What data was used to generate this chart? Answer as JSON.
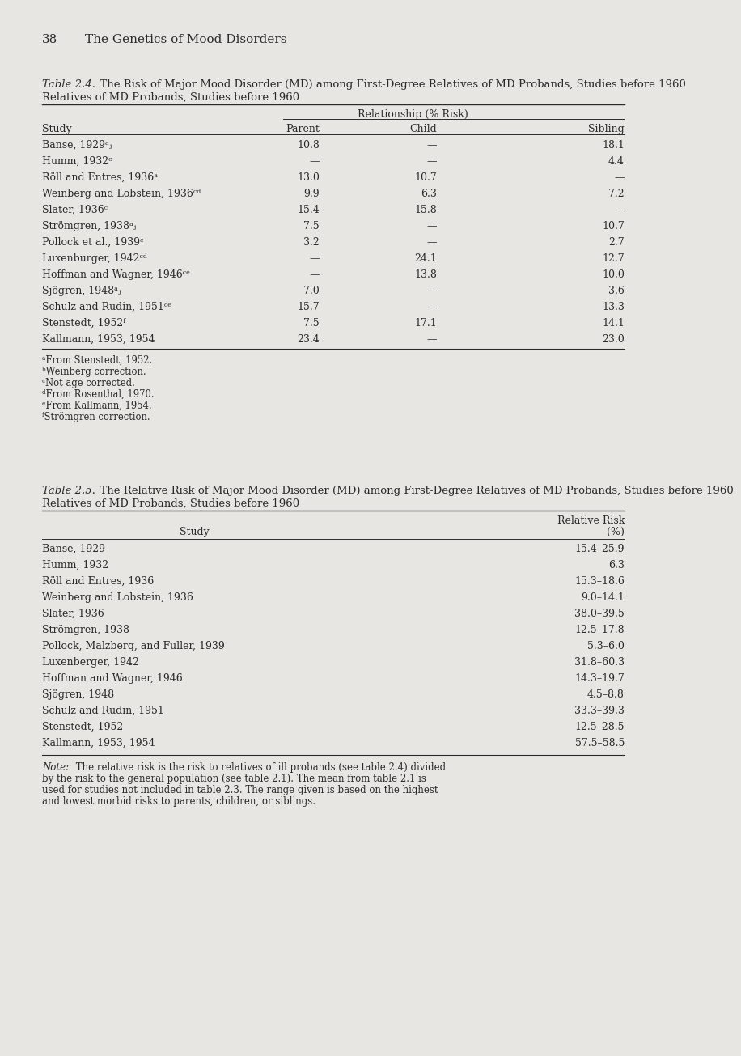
{
  "page_header_num": "38",
  "page_header_title": "    The Genetics of Mood Disorders",
  "bg_color": "#e8e6e3",
  "text_color": "#2a2a2a",
  "table1": {
    "title_italic": "Table 2.4.",
    "title_rest": "  The Risk of Major Mood Disorder (MD) among First-Degree Relatives of MD Probands, Studies before 1960",
    "col_group_header": "Relationship (% Risk)",
    "col_headers": [
      "Study",
      "Parent",
      "Child",
      "Sibling"
    ],
    "rows": [
      [
        "Banse, 1929ᵃⱼ",
        "10.8",
        "—",
        "18.1"
      ],
      [
        "Humm, 1932ᶜ",
        "—",
        "—",
        "4.4"
      ],
      [
        "Röll and Entres, 1936ᵃ",
        "13.0",
        "10.7",
        "—"
      ],
      [
        "Weinberg and Lobstein, 1936ᶜᵈ",
        "9.9",
        "6.3",
        "7.2"
      ],
      [
        "Slater, 1936ᶜ",
        "15.4",
        "15.8",
        "—"
      ],
      [
        "Strömgren, 1938ᵃⱼ",
        "7.5",
        "—",
        "10.7"
      ],
      [
        "Pollock et al., 1939ᶜ",
        "3.2",
        "—",
        "2.7"
      ],
      [
        "Luxenburger, 1942ᶜᵈ",
        "—",
        "24.1",
        "12.7"
      ],
      [
        "Hoffman and Wagner, 1946ᶜᵉ",
        "—",
        "13.8",
        "10.0"
      ],
      [
        "Sjögren, 1948ᵃⱼ",
        "7.0",
        "—",
        "3.6"
      ],
      [
        "Schulz and Rudin, 1951ᶜᵉ",
        "15.7",
        "—",
        "13.3"
      ],
      [
        "Stenstedt, 1952ᶠ",
        "7.5",
        "17.1",
        "14.1"
      ],
      [
        "Kallmann, 1953, 1954",
        "23.4",
        "—",
        "23.0"
      ]
    ],
    "footnotes": [
      "ᵃFrom Stenstedt, 1952.",
      "ᵇWeinberg correction.",
      "ᶜNot age corrected.",
      "ᵈFrom Rosenthal, 1970.",
      "ᵉFrom Kallmann, 1954.",
      "ᶠStrömgren correction."
    ]
  },
  "table2": {
    "title_italic": "Table 2.5.",
    "title_rest": "  The Relative Risk of Major Mood Disorder (MD) among First-Degree Relatives of MD Probands, Studies before 1960",
    "col_header_left": "Study",
    "col_header_right1": "Relative Risk",
    "col_header_right2": "(%)",
    "rows": [
      [
        "Banse, 1929",
        "15.4–25.9"
      ],
      [
        "Humm, 1932",
        "6.3"
      ],
      [
        "Röll and Entres, 1936",
        "15.3–18.6"
      ],
      [
        "Weinberg and Lobstein, 1936",
        "9.0–14.1"
      ],
      [
        "Slater, 1936",
        "38.0–39.5"
      ],
      [
        "Strömgren, 1938",
        "12.5–17.8"
      ],
      [
        "Pollock, Malzberg, and Fuller, 1939",
        "5.3–6.0"
      ],
      [
        "Luxenberger, 1942",
        "31.8–60.3"
      ],
      [
        "Hoffman and Wagner, 1946",
        "14.3–19.7"
      ],
      [
        "Sjögren, 1948",
        "4.5–8.8"
      ],
      [
        "Schulz and Rudin, 1951",
        "33.3–39.3"
      ],
      [
        "Stenstedt, 1952",
        "12.5–28.5"
      ],
      [
        "Kallmann, 1953, 1954",
        "57.5–58.5"
      ]
    ],
    "note_italic": "Note:",
    "note_rest": " The relative risk is the risk to relatives of ill probands (see table 2.4) divided by the risk to the general population (see table 2.1). The mean from table 2.1 is used for studies not included in table 2.3. The range given is based on the highest and lowest morbid risks to parents, children, or siblings."
  }
}
